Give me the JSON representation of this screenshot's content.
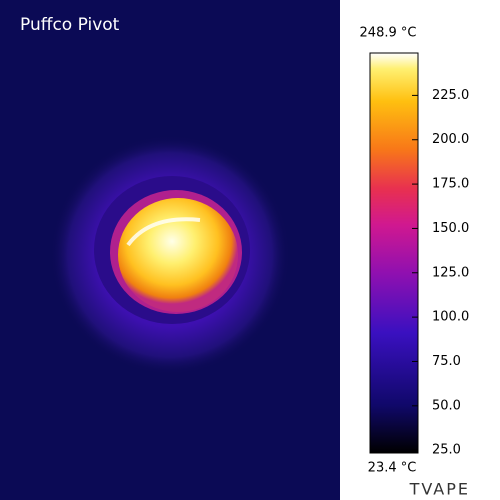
{
  "image": {
    "title": "Puffco Pivot",
    "watermark": "TVAPE"
  },
  "colorbar": {
    "max": {
      "value": 248.9,
      "label": "248.9 °C"
    },
    "min": {
      "value": 23.4,
      "label": "23.4 °C"
    },
    "ticks": [
      {
        "value": 225,
        "label": "225.0"
      },
      {
        "value": 200,
        "label": "200.0"
      },
      {
        "value": 175,
        "label": "175.0"
      },
      {
        "value": 150,
        "label": "150.0"
      },
      {
        "value": 125,
        "label": "125.0"
      },
      {
        "value": 100,
        "label": "100.0"
      },
      {
        "value": 75,
        "label": "75.0"
      },
      {
        "value": 50,
        "label": "50.0"
      },
      {
        "value": 25,
        "label": "25.0"
      }
    ]
  }
}
